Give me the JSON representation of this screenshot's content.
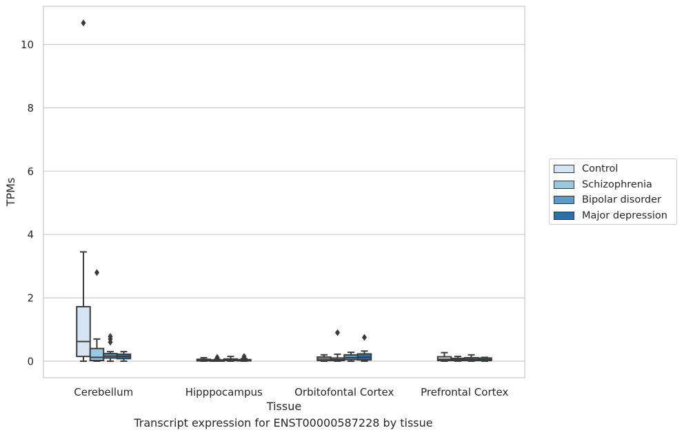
{
  "caption": "Transcript expression for ENST00000587228 by tissue",
  "chart_data": {
    "type": "box",
    "xlabel": "Tissue",
    "ylabel": "TPMs",
    "ylim": [
      -0.5,
      11.2
    ],
    "yticks": [
      0,
      2,
      4,
      6,
      8,
      10
    ],
    "categories": [
      "Cerebellum",
      "Hipppocampus",
      "Orbitofontal Cortex",
      "Prefrontal Cortex"
    ],
    "grid": "horizontal",
    "legend_position": "right, outside plot",
    "series": [
      {
        "name": "Control",
        "color": "#d6e5f3",
        "boxes": [
          {
            "min": 0.0,
            "q1": 0.15,
            "median": 0.62,
            "q3": 1.72,
            "max": 3.45,
            "outliers": [
              10.68
            ]
          },
          {
            "min": 0.0,
            "q1": 0.01,
            "median": 0.03,
            "q3": 0.06,
            "max": 0.11,
            "outliers": []
          },
          {
            "min": 0.0,
            "q1": 0.02,
            "median": 0.07,
            "q3": 0.13,
            "max": 0.2,
            "outliers": []
          },
          {
            "min": 0.0,
            "q1": 0.02,
            "median": 0.06,
            "q3": 0.14,
            "max": 0.27,
            "outliers": []
          }
        ]
      },
      {
        "name": "Schizophrenia",
        "color": "#9ac8e0",
        "boxes": [
          {
            "min": 0.0,
            "q1": 0.02,
            "median": 0.12,
            "q3": 0.4,
            "max": 0.7,
            "outliers": [
              2.8
            ]
          },
          {
            "min": 0.0,
            "q1": 0.0,
            "median": 0.02,
            "q3": 0.04,
            "max": 0.06,
            "outliers": [
              0.09,
              0.12
            ]
          },
          {
            "min": 0.0,
            "q1": 0.02,
            "median": 0.05,
            "q3": 0.1,
            "max": 0.22,
            "outliers": [
              0.9
            ]
          },
          {
            "min": 0.0,
            "q1": 0.02,
            "median": 0.05,
            "q3": 0.09,
            "max": 0.15,
            "outliers": []
          }
        ]
      },
      {
        "name": "Bipolar disorder",
        "color": "#5a9cc8",
        "boxes": [
          {
            "min": 0.0,
            "q1": 0.1,
            "median": 0.16,
            "q3": 0.24,
            "max": 0.3,
            "outliers": [
              0.6,
              0.7,
              0.78
            ]
          },
          {
            "min": 0.0,
            "q1": 0.02,
            "median": 0.04,
            "q3": 0.07,
            "max": 0.15,
            "outliers": []
          },
          {
            "min": 0.0,
            "q1": 0.05,
            "median": 0.11,
            "q3": 0.2,
            "max": 0.28,
            "outliers": []
          },
          {
            "min": 0.0,
            "q1": 0.02,
            "median": 0.06,
            "q3": 0.11,
            "max": 0.2,
            "outliers": []
          }
        ]
      },
      {
        "name": "Major depression",
        "color": "#2c6fab",
        "boxes": [
          {
            "min": 0.0,
            "q1": 0.08,
            "median": 0.15,
            "q3": 0.22,
            "max": 0.3,
            "outliers": []
          },
          {
            "min": 0.0,
            "q1": 0.01,
            "median": 0.03,
            "q3": 0.05,
            "max": 0.08,
            "outliers": [
              0.1,
              0.15
            ]
          },
          {
            "min": 0.0,
            "q1": 0.04,
            "median": 0.12,
            "q3": 0.23,
            "max": 0.32,
            "outliers": [
              0.75
            ]
          },
          {
            "min": 0.0,
            "q1": 0.02,
            "median": 0.05,
            "q3": 0.1,
            "max": 0.12,
            "outliers": []
          }
        ]
      }
    ]
  }
}
